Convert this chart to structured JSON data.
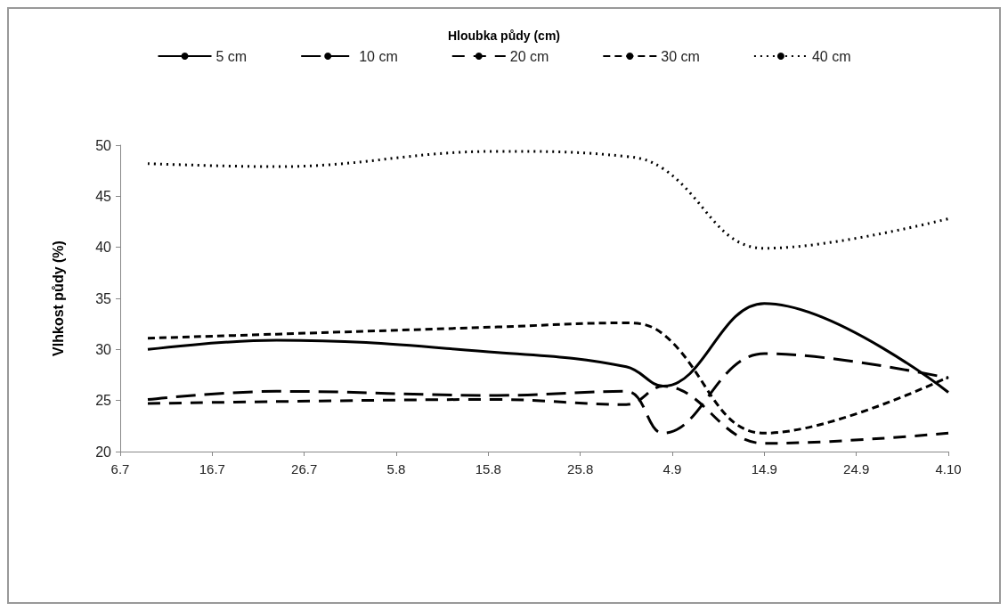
{
  "chart_data": {
    "type": "line",
    "legend_title": "Hloubka půdy (cm)",
    "ylabel": "Vlhkost půdy (%)",
    "x": [
      "--07-09",
      "--07-23",
      "--08-16",
      "--08-30",
      "--09-03",
      "--09-14",
      "--10-04"
    ],
    "series": [
      {
        "name": "5 cm",
        "color": "#000000",
        "line_style": "solid",
        "values": [
          30.0,
          30.9,
          29.7,
          28.3,
          26.4,
          34.5,
          25.8
        ]
      },
      {
        "name": "10 cm",
        "color": "#000000",
        "line_style": "dashed",
        "values": [
          25.1,
          25.9,
          25.5,
          25.9,
          21.8,
          29.6,
          27.2
        ]
      },
      {
        "name": "20 cm",
        "color": "#000000",
        "line_style": "dashed",
        "values": [
          24.7,
          24.9,
          25.1,
          24.6,
          26.4,
          20.8,
          21.8
        ]
      },
      {
        "name": "30 cm",
        "color": "#000000",
        "line_style": "dashed",
        "values": [
          31.1,
          31.5,
          32.2,
          32.6,
          31.5,
          21.8,
          27.3
        ]
      },
      {
        "name": "40 cm",
        "color": "#000000",
        "line_style": "dotted",
        "values": [
          48.2,
          47.9,
          49.4,
          48.9,
          47.7,
          39.9,
          42.8
        ]
      }
    ],
    "xlim": [
      "--07-06",
      "--10-04"
    ],
    "xticks": [
      {
        "value": "--07-06",
        "label": "6.7"
      },
      {
        "value": "--07-16",
        "label": "16.7"
      },
      {
        "value": "--07-26",
        "label": "26.7"
      },
      {
        "value": "--08-05",
        "label": "5.8"
      },
      {
        "value": "--08-15",
        "label": "15.8"
      },
      {
        "value": "--08-25",
        "label": "25.8"
      },
      {
        "value": "--09-04",
        "label": "4.9"
      },
      {
        "value": "--09-14",
        "label": "14.9"
      },
      {
        "value": "--09-24",
        "label": "24.9"
      },
      {
        "value": "--10-04",
        "label": "4.10"
      }
    ],
    "ylim": [
      20,
      50
    ],
    "yticks": [
      20,
      25,
      30,
      35,
      40,
      45,
      50
    ],
    "grid": false,
    "legend": "top",
    "marker": "none"
  }
}
